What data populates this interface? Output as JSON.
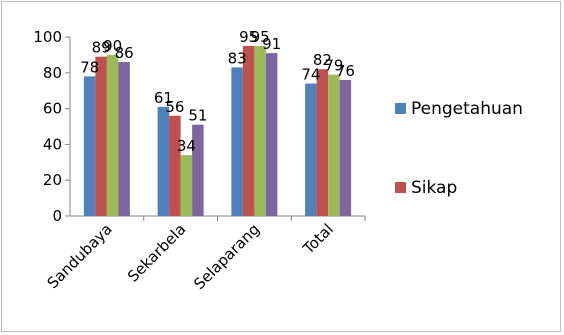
{
  "chart_data": {
    "type": "bar",
    "categories": [
      "Sandubaya",
      "Sekarbela",
      "Selaparang",
      "Total"
    ],
    "series": [
      {
        "name": "Pengetahuan",
        "values": [
          78,
          61,
          83,
          74
        ],
        "color": "#4f81bd"
      },
      {
        "name": "Sikap",
        "values": [
          89,
          56,
          95,
          82
        ],
        "color": "#c0504d"
      },
      {
        "name": "",
        "values": [
          90,
          34,
          95,
          79
        ],
        "color": "#9bbb59"
      },
      {
        "name": "",
        "values": [
          86,
          51,
          91,
          76
        ],
        "color": "#8064a2"
      }
    ],
    "data_labels": [
      [
        "78",
        "89",
        "90",
        "86"
      ],
      [
        "61",
        "56",
        "34",
        "51"
      ],
      [
        "83",
        "95",
        "95",
        "91"
      ],
      [
        "74",
        "82",
        "79",
        "76"
      ]
    ],
    "ylim": [
      0,
      100
    ],
    "yticks": [
      0,
      20,
      40,
      60,
      80,
      100
    ],
    "grid": false,
    "legend_position": "right",
    "legend_entries": [
      "Pengetahuan",
      "Sikap"
    ],
    "title": "",
    "xlabel": "",
    "ylabel": ""
  }
}
